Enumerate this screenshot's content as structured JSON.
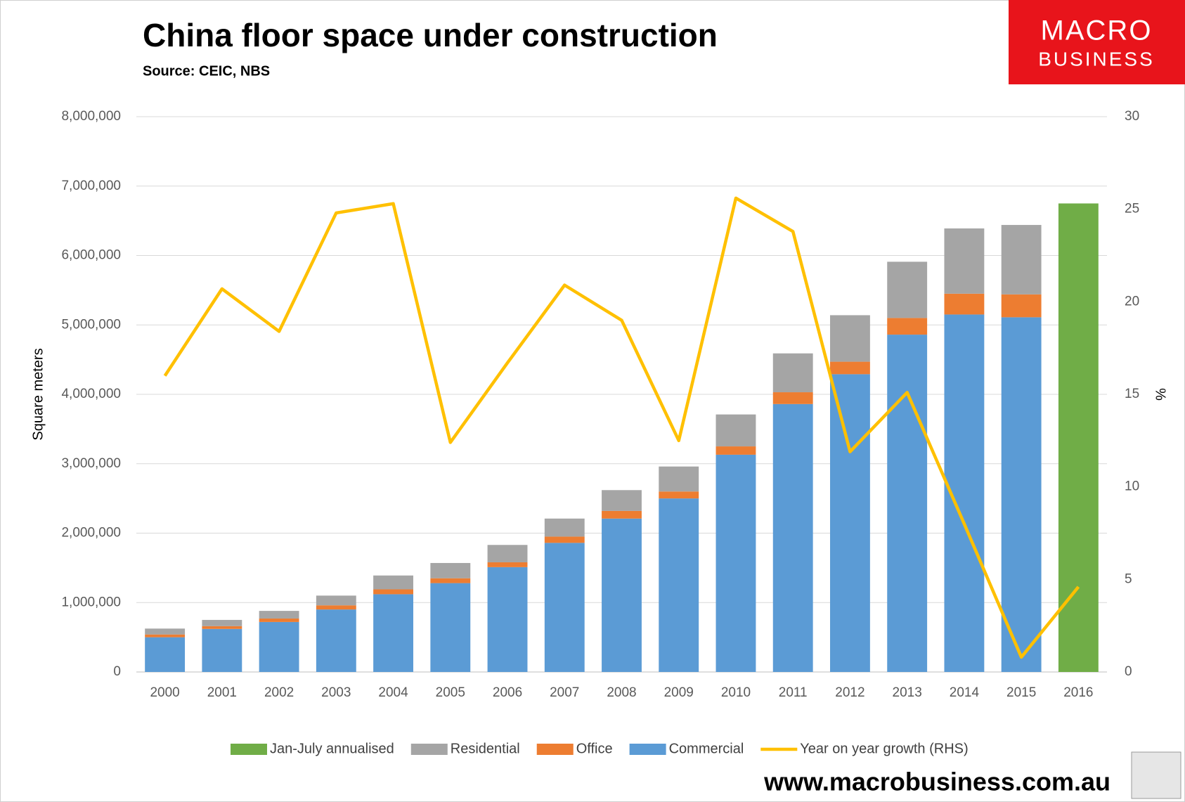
{
  "chart_data": {
    "type": "bar",
    "title": "China floor space under construction",
    "subtitle": "Source: CEIC, NBS",
    "logo": {
      "line1": "MACRO",
      "line2": "BUSINESS"
    },
    "footer": "www.macrobusiness.com.au",
    "y_label": "Square meters",
    "y2_label": "%",
    "categories": [
      "2000",
      "2001",
      "2002",
      "2003",
      "2004",
      "2005",
      "2006",
      "2007",
      "2008",
      "2009",
      "2010",
      "2011",
      "2012",
      "2013",
      "2014",
      "2015",
      "2016"
    ],
    "series": [
      {
        "name": "Jan-July annualised",
        "color": "#70ad47",
        "values": [
          null,
          null,
          null,
          null,
          null,
          null,
          null,
          null,
          null,
          null,
          null,
          null,
          null,
          null,
          null,
          null,
          6750000
        ]
      },
      {
        "name": "Residential",
        "color": "#a5a5a5",
        "values": [
          85000,
          90000,
          110000,
          140000,
          200000,
          220000,
          250000,
          260000,
          300000,
          360000,
          460000,
          560000,
          670000,
          810000,
          940000,
          1000000,
          null
        ]
      },
      {
        "name": "Office",
        "color": "#ed7d31",
        "values": [
          40000,
          40000,
          50000,
          60000,
          70000,
          70000,
          70000,
          90000,
          110000,
          100000,
          120000,
          170000,
          180000,
          240000,
          300000,
          330000,
          null
        ]
      },
      {
        "name": "Commercial",
        "color": "#5b9bd5",
        "values": [
          500000,
          620000,
          720000,
          900000,
          1120000,
          1280000,
          1510000,
          1860000,
          2210000,
          2500000,
          3130000,
          3860000,
          4290000,
          4860000,
          5150000,
          5110000,
          null
        ]
      },
      {
        "name": "Year on year growth (RHS)",
        "color": "#ffc000",
        "type": "line",
        "axis": "y2",
        "values": [
          16.0,
          20.7,
          18.4,
          24.8,
          25.3,
          12.4,
          16.7,
          20.9,
          19.0,
          12.5,
          25.6,
          23.8,
          11.9,
          15.1,
          8.0,
          0.8,
          4.6
        ]
      }
    ],
    "ylim": [
      0,
      8000000
    ],
    "yticks": [
      0,
      {
        "value": 1000000,
        "label": "1,000,000"
      },
      {
        "value": 2000000,
        "label": "2,000,000"
      },
      {
        "value": 3000000,
        "label": "3,000,000"
      },
      {
        "value": 4000000,
        "label": "4,000,000"
      },
      {
        "value": 5000000,
        "label": "5,000,000"
      },
      {
        "value": 6000000,
        "label": "6,000,000"
      },
      {
        "value": 7000000,
        "label": "7,000,000"
      },
      {
        "value": 8000000,
        "label": "8,000,000"
      }
    ],
    "y2lim": [
      0,
      30
    ],
    "y2ticks": [
      0,
      5,
      10,
      15,
      20,
      25,
      30
    ],
    "grid": true,
    "legend": "bottom"
  }
}
